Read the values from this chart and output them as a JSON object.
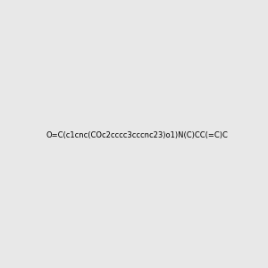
{
  "smiles": "O=C(c1cnc(COc2cccc3cccnc23)o1)N(C)CC(=C)C",
  "image_size": 300,
  "background_color": "#e8e8e8",
  "atom_colors": {
    "N": "#0000ff",
    "O": "#ff0000"
  }
}
